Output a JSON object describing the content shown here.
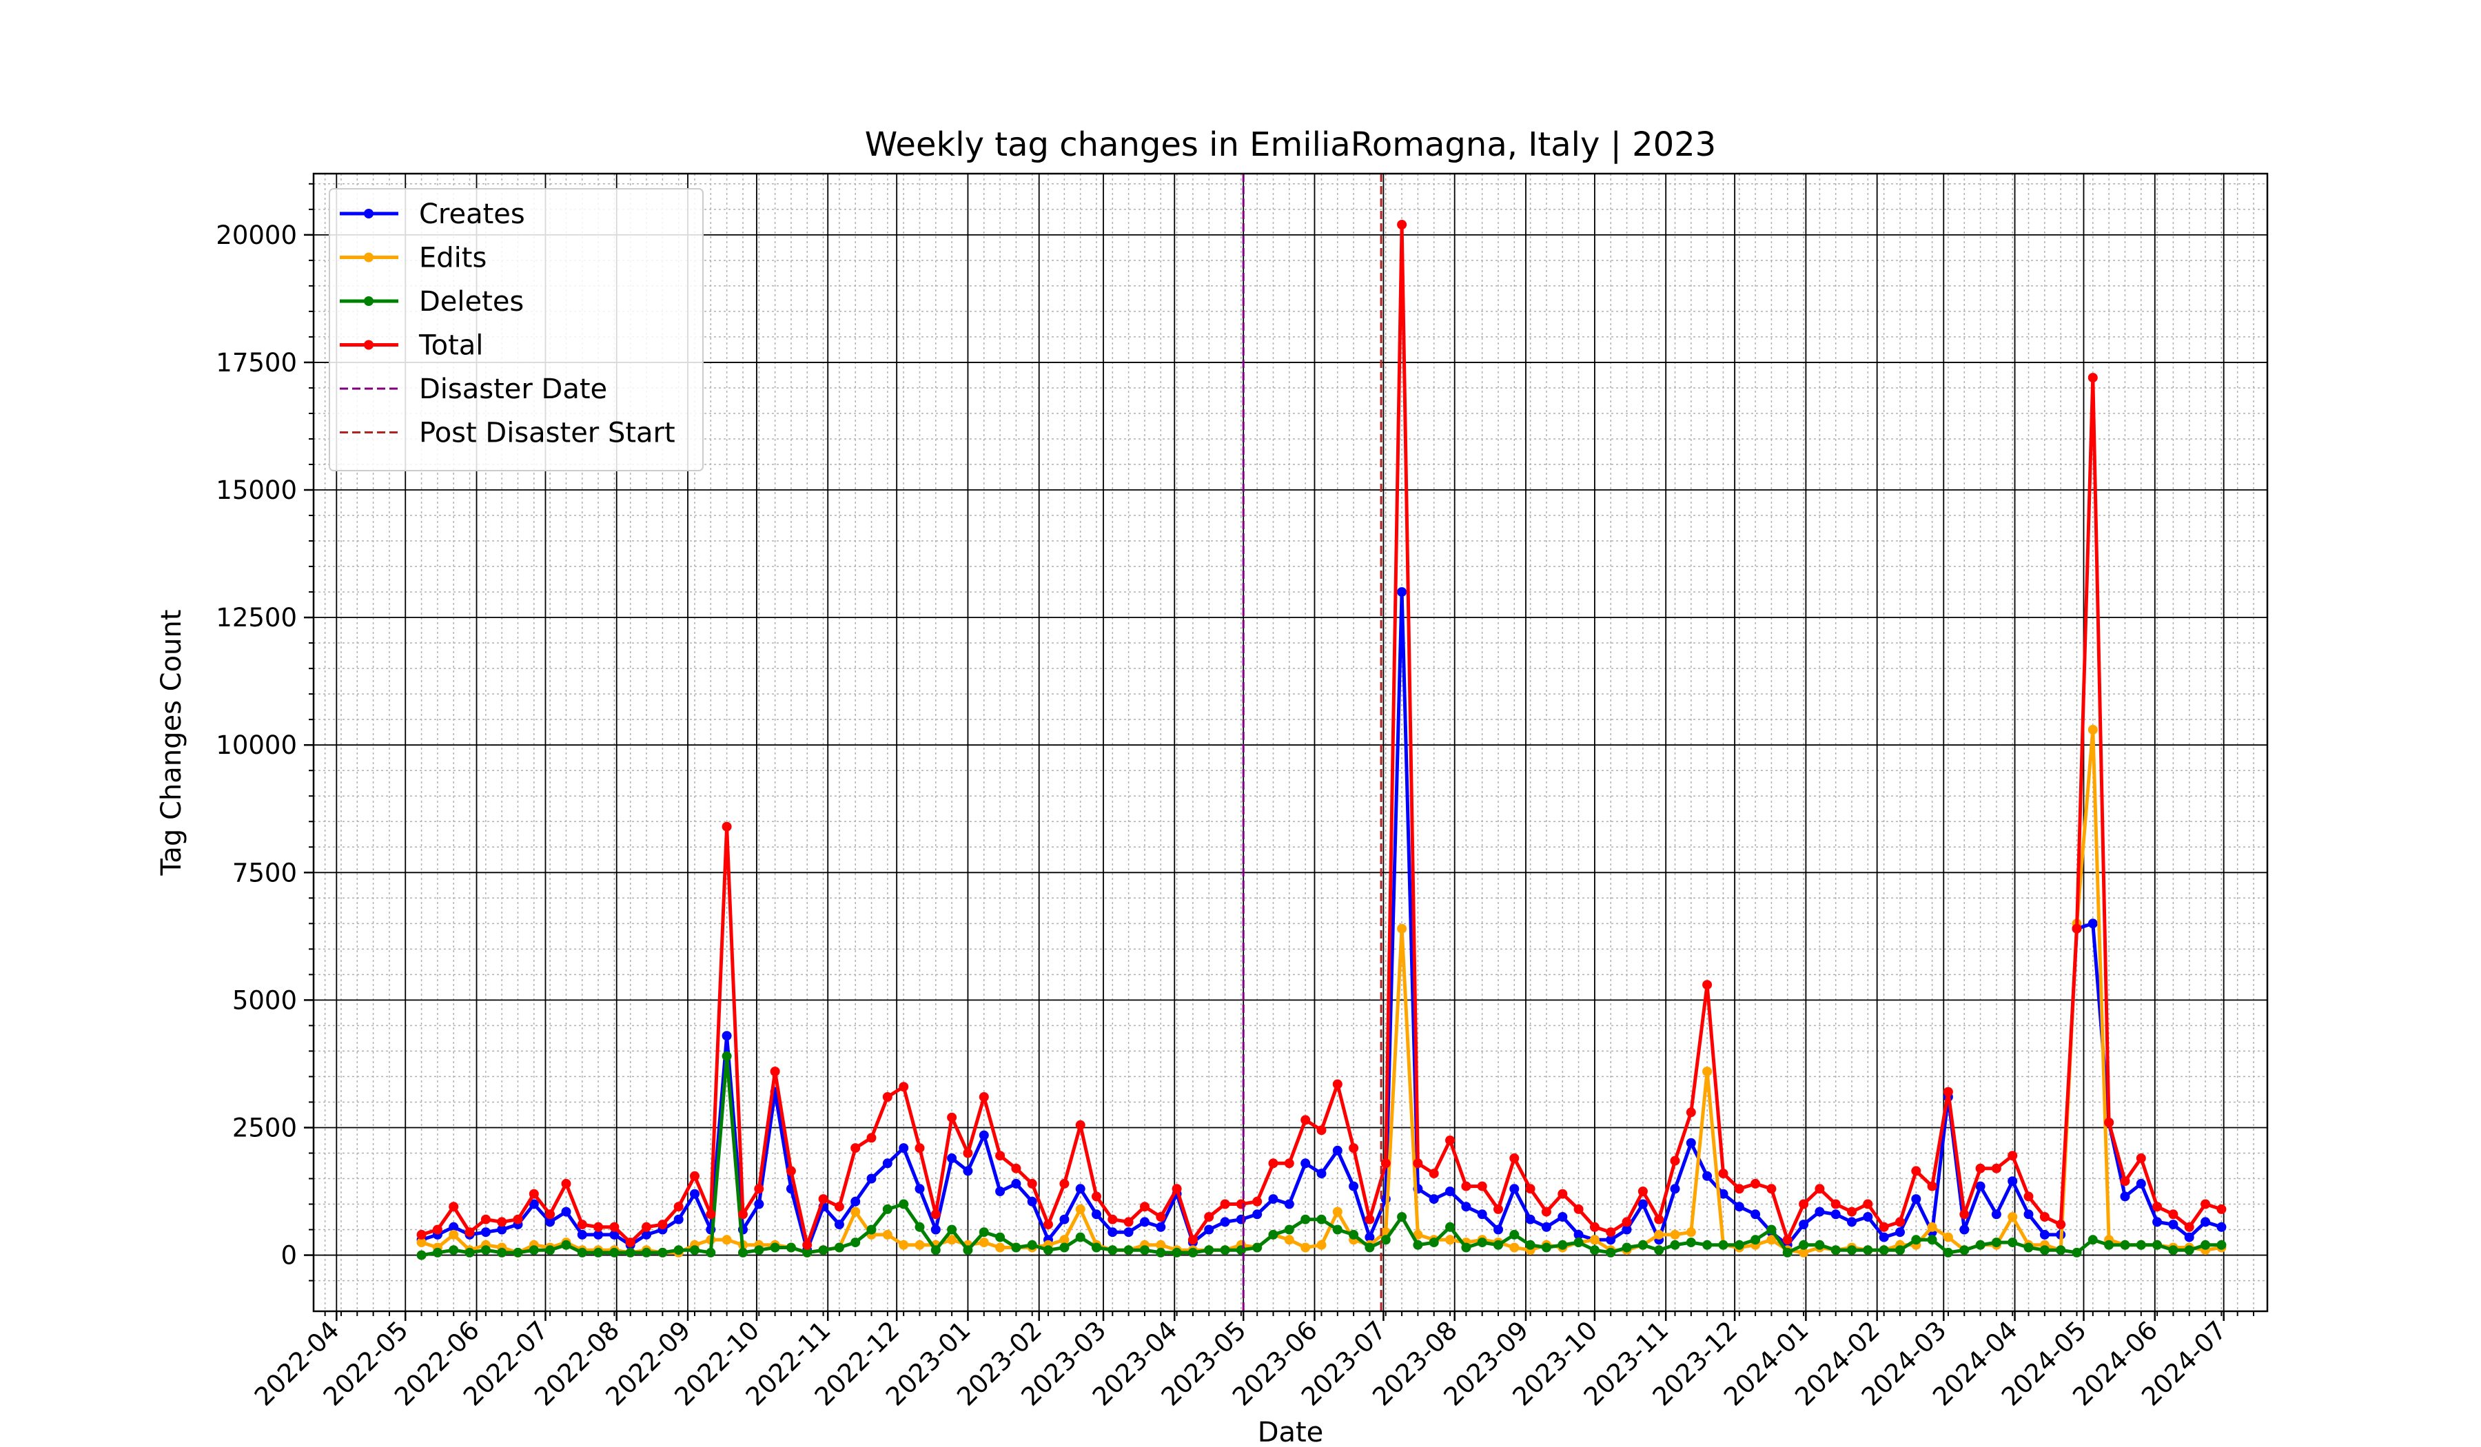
{
  "chart_data": {
    "type": "line",
    "title": "Weekly tag changes in EmiliaRomagna, Italy | 2023",
    "xlabel": "Date",
    "ylabel": "Tag Changes Count",
    "ylim": [
      -1100,
      21200
    ],
    "xlim": [
      "2022-03-22",
      "2024-07-20"
    ],
    "grid": true,
    "legend_position": "top-left",
    "x_tick_labels": [
      "2022-04",
      "2022-05",
      "2022-06",
      "2022-07",
      "2022-08",
      "2022-09",
      "2022-10",
      "2022-11",
      "2022-12",
      "2023-01",
      "2023-02",
      "2023-03",
      "2023-04",
      "2023-05",
      "2023-06",
      "2023-07",
      "2023-08",
      "2023-09",
      "2023-10",
      "2023-11",
      "2023-12",
      "2024-01",
      "2024-02",
      "2024-03",
      "2024-04",
      "2024-05",
      "2024-06",
      "2024-07"
    ],
    "y_ticks": [
      0,
      2500,
      5000,
      7500,
      10000,
      12500,
      15000,
      17500,
      20000
    ],
    "x_start": "2022-05-08",
    "x_step_days": 7,
    "series": [
      {
        "name": "Creates",
        "color": "#0000ff",
        "values": [
          300,
          400,
          550,
          400,
          450,
          500,
          600,
          1000,
          650,
          850,
          400,
          400,
          400,
          200,
          400,
          500,
          700,
          1200,
          500,
          4300,
          500,
          1000,
          3200,
          1300,
          100,
          950,
          600,
          1050,
          1500,
          1800,
          2100,
          1300,
          500,
          1900,
          1650,
          2350,
          1250,
          1400,
          1050,
          300,
          700,
          1300,
          800,
          450,
          450,
          650,
          550,
          1200,
          250,
          500,
          650,
          700,
          800,
          1100,
          1000,
          1800,
          1600,
          2050,
          1350,
          350,
          1100,
          13000,
          1300,
          1100,
          1250,
          950,
          800,
          500,
          1300,
          700,
          550,
          750,
          400,
          300,
          300,
          500,
          1000,
          300,
          1300,
          2200,
          1550,
          1200,
          950,
          800,
          450,
          200,
          600,
          850,
          800,
          650,
          750,
          350,
          450,
          1100,
          450,
          3100,
          500,
          1350,
          800,
          1450,
          800,
          400,
          400,
          6400,
          6500,
          2600,
          1150,
          1400,
          650,
          600,
          350,
          650,
          550
        ]
      },
      {
        "name": "Edits",
        "color": "#ffa500",
        "values": [
          250,
          150,
          400,
          100,
          200,
          150,
          50,
          200,
          150,
          250,
          100,
          100,
          100,
          50,
          100,
          50,
          50,
          200,
          300,
          300,
          200,
          200,
          200,
          150,
          50,
          100,
          150,
          850,
          400,
          400,
          200,
          200,
          200,
          300,
          200,
          250,
          150,
          150,
          150,
          200,
          300,
          900,
          200,
          100,
          100,
          200,
          200,
          100,
          100,
          100,
          100,
          200,
          150,
          400,
          300,
          150,
          200,
          850,
          300,
          200,
          450,
          6400,
          400,
          300,
          300,
          250,
          300,
          250,
          150,
          100,
          200,
          150,
          250,
          300,
          100,
          100,
          200,
          400,
          400,
          450,
          3600,
          200,
          150,
          200,
          300,
          100,
          50,
          150,
          100,
          150,
          100,
          100,
          200,
          200,
          550,
          350,
          100,
          200,
          200,
          750,
          200,
          200,
          100,
          6500,
          10300,
          300,
          200,
          200,
          200,
          150,
          150,
          100,
          150
        ]
      },
      {
        "name": "Deletes",
        "color": "#008000",
        "values": [
          0,
          50,
          100,
          50,
          100,
          50,
          50,
          100,
          100,
          200,
          50,
          50,
          50,
          50,
          50,
          50,
          100,
          100,
          50,
          3900,
          50,
          100,
          150,
          150,
          50,
          100,
          150,
          250,
          500,
          900,
          1000,
          550,
          100,
          500,
          100,
          450,
          350,
          150,
          200,
          100,
          150,
          350,
          150,
          100,
          100,
          100,
          50,
          50,
          50,
          100,
          100,
          100,
          150,
          400,
          500,
          700,
          700,
          500,
          400,
          150,
          300,
          750,
          200,
          250,
          550,
          150,
          250,
          200,
          400,
          200,
          150,
          200,
          250,
          100,
          50,
          150,
          200,
          100,
          200,
          250,
          200,
          200,
          200,
          300,
          500,
          50,
          200,
          200,
          100,
          100,
          100,
          100,
          100,
          300,
          300,
          50,
          100,
          200,
          250,
          250,
          150,
          100,
          100,
          50,
          300,
          200,
          200,
          200,
          200,
          100,
          100,
          200,
          200
        ]
      },
      {
        "name": "Total",
        "color": "#ff0000",
        "values": [
          400,
          500,
          950,
          450,
          700,
          650,
          700,
          1200,
          800,
          1400,
          600,
          550,
          550,
          250,
          550,
          600,
          950,
          1550,
          800,
          8400,
          800,
          1300,
          3600,
          1650,
          200,
          1100,
          950,
          2100,
          2300,
          3100,
          3300,
          2100,
          800,
          2700,
          2000,
          3100,
          1950,
          1700,
          1400,
          600,
          1400,
          2550,
          1150,
          700,
          650,
          950,
          750,
          1300,
          300,
          750,
          1000,
          1000,
          1050,
          1800,
          1800,
          2650,
          2450,
          3350,
          2100,
          700,
          1800,
          20200,
          1800,
          1600,
          2250,
          1350,
          1350,
          900,
          1900,
          1300,
          850,
          1200,
          900,
          550,
          450,
          650,
          1250,
          700,
          1850,
          2800,
          5300,
          1600,
          1300,
          1400,
          1300,
          300,
          1000,
          1300,
          1000,
          850,
          1000,
          550,
          650,
          1650,
          1350,
          3200,
          800,
          1700,
          1700,
          1950,
          1150,
          750,
          600,
          6400,
          17200,
          2600,
          1450,
          1900,
          950,
          800,
          550,
          1000,
          900
        ]
      }
    ],
    "vlines": [
      {
        "name": "Disaster Date",
        "date": "2023-05-01",
        "color": "#800080",
        "style": "dashed"
      },
      {
        "name": "Post Disaster Start",
        "date": "2023-06-30",
        "color": "#b22222",
        "style": "dashed"
      }
    ]
  }
}
